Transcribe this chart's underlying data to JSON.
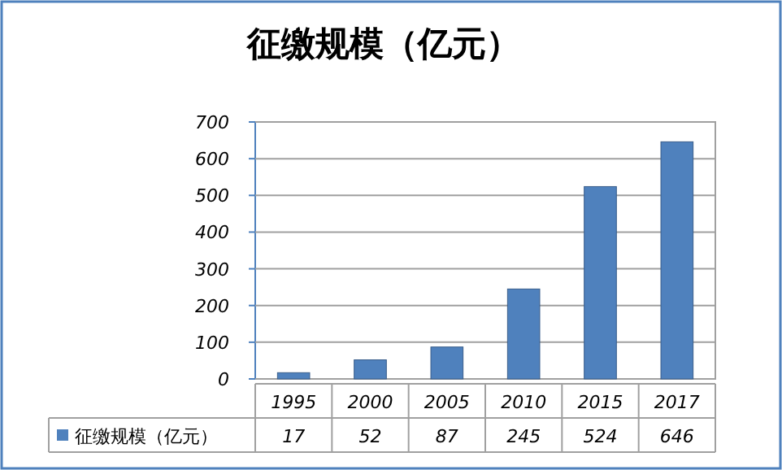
{
  "chart_data": {
    "type": "bar",
    "title": "征缴规模（亿元）",
    "categories": [
      "1995",
      "2000",
      "2005",
      "2010",
      "2015",
      "2017"
    ],
    "series": [
      {
        "name": "征缴规模（亿元）",
        "color": "#4f81bd",
        "values": [
          17,
          52,
          87,
          245,
          524,
          646
        ]
      }
    ],
    "ylim": [
      0,
      700
    ],
    "yticks": [
      0,
      100,
      200,
      300,
      400,
      500,
      600,
      700
    ],
    "grid": "y",
    "data_labels": true,
    "legend": "bottom"
  }
}
